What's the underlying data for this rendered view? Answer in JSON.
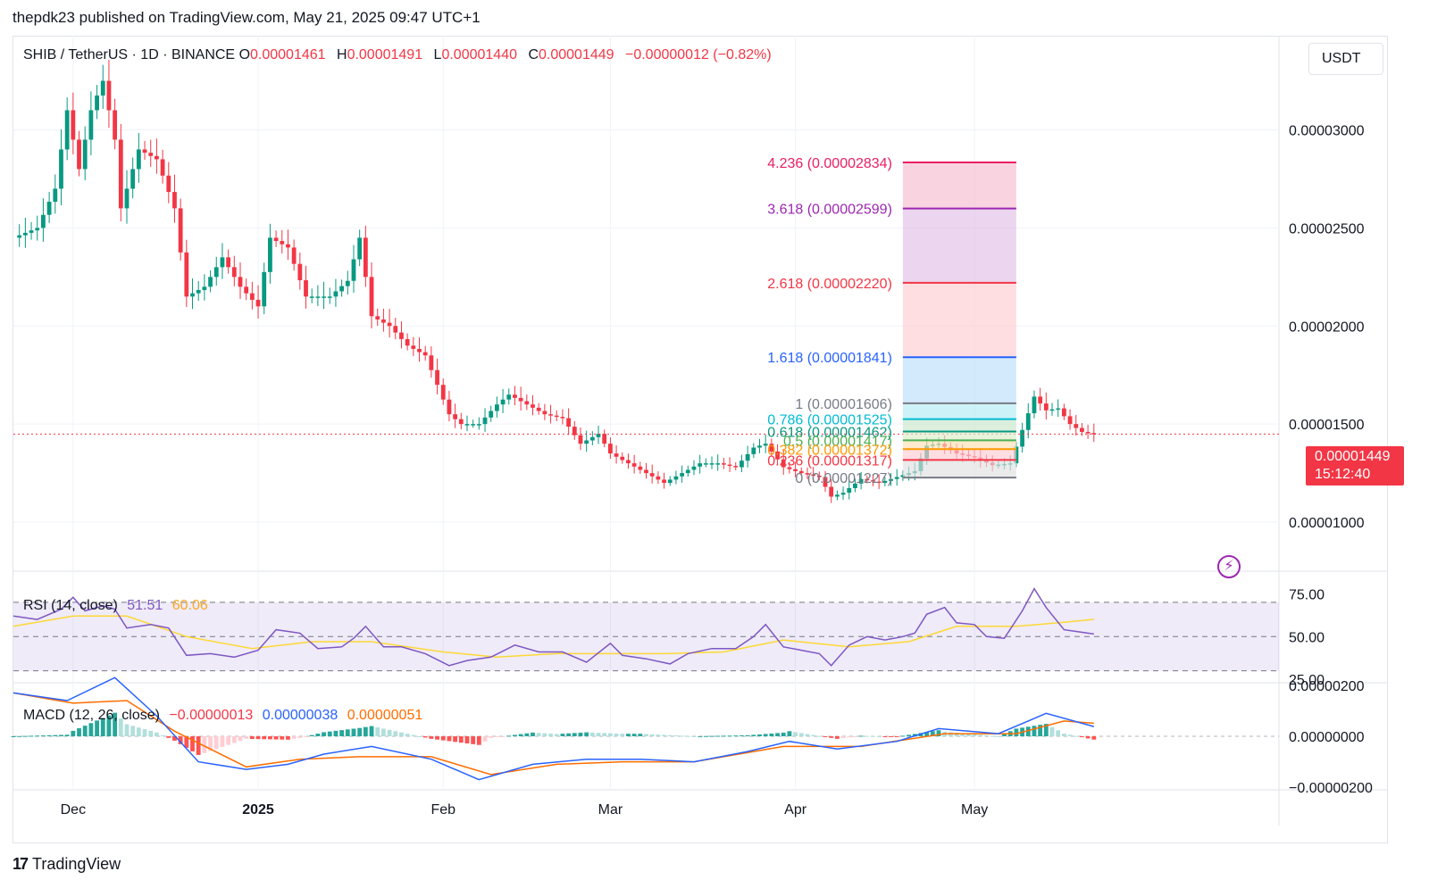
{
  "header": {
    "text": "thepdk23 published on TradingView.com, May 21, 2025 09:47 UTC+1"
  },
  "footer": {
    "brand": "TradingView",
    "logo_glyph": "17"
  },
  "legend": {
    "symbol": "SHIB / TetherUS · 1D · BINANCE",
    "o_label": "O",
    "o_value": "0.00001461",
    "h_label": "H",
    "h_value": "0.00001491",
    "l_label": "L",
    "l_value": "0.00001440",
    "c_label": "C",
    "c_value": "0.00001449",
    "change": "−0.00000012 (−0.82%)"
  },
  "currency_button": "USDT",
  "last_price": {
    "price": "0.00001449",
    "countdown": "15:12:40"
  },
  "colors": {
    "up": "#089981",
    "down": "#f23645",
    "rsi": "#7e57c2",
    "rsi_ma": "#fdd835",
    "macd": "#2962ff",
    "signal": "#ff6d00",
    "grid": "#f0f3fa"
  },
  "chart_data": [
    {
      "type": "candlestick",
      "name": "price",
      "y_ticks": [
        "0.00003000",
        "0.00002500",
        "0.00002000",
        "0.00001500",
        "0.00001000"
      ],
      "y_tick_values": [
        3e-05,
        2.5e-05,
        2e-05,
        1.5e-05,
        1e-05
      ],
      "ylim": [
        7.5e-06,
        3.48e-05
      ],
      "x_ticks": [
        "Dec",
        "2025",
        "Feb",
        "Mar",
        "Apr",
        "May"
      ],
      "x_tick_dates": [
        "2024-12-01",
        "2025-01-01",
        "2025-02-01",
        "2025-03-01",
        "2025-04-01",
        "2025-05-01"
      ],
      "xlim": [
        "2024-11-21",
        "2025-06-21"
      ],
      "last_close": 1.449e-05,
      "close_path": [
        {
          "date": "2024-11-21",
          "close": 2.45e-05
        },
        {
          "date": "2024-11-25",
          "close": 2.5e-05
        },
        {
          "date": "2024-11-28",
          "close": 2.7e-05
        },
        {
          "date": "2024-11-30",
          "close": 3.1e-05
        },
        {
          "date": "2024-12-02",
          "close": 2.8e-05
        },
        {
          "date": "2024-12-04",
          "close": 3.1e-05
        },
        {
          "date": "2024-12-06",
          "close": 3.25e-05
        },
        {
          "date": "2024-12-08",
          "close": 2.95e-05
        },
        {
          "date": "2024-12-09",
          "close": 2.6e-05
        },
        {
          "date": "2024-12-12",
          "close": 2.9e-05
        },
        {
          "date": "2024-12-15",
          "close": 2.85e-05
        },
        {
          "date": "2024-12-18",
          "close": 2.6e-05
        },
        {
          "date": "2024-12-20",
          "close": 2.15e-05
        },
        {
          "date": "2024-12-23",
          "close": 2.2e-05
        },
        {
          "date": "2024-12-26",
          "close": 2.35e-05
        },
        {
          "date": "2024-12-29",
          "close": 2.2e-05
        },
        {
          "date": "2025-01-01",
          "close": 2.1e-05
        },
        {
          "date": "2025-01-03",
          "close": 2.45e-05
        },
        {
          "date": "2025-01-06",
          "close": 2.4e-05
        },
        {
          "date": "2025-01-09",
          "close": 2.15e-05
        },
        {
          "date": "2025-01-13",
          "close": 2.15e-05
        },
        {
          "date": "2025-01-16",
          "close": 2.23e-05
        },
        {
          "date": "2025-01-18",
          "close": 2.45e-05
        },
        {
          "date": "2025-01-20",
          "close": 2.05e-05
        },
        {
          "date": "2025-01-23",
          "close": 2e-05
        },
        {
          "date": "2025-01-26",
          "close": 1.9e-05
        },
        {
          "date": "2025-01-29",
          "close": 1.85e-05
        },
        {
          "date": "2025-02-02",
          "close": 1.55e-05
        },
        {
          "date": "2025-02-04",
          "close": 1.5e-05
        },
        {
          "date": "2025-02-07",
          "close": 1.5e-05
        },
        {
          "date": "2025-02-10",
          "close": 1.6e-05
        },
        {
          "date": "2025-02-12",
          "close": 1.65e-05
        },
        {
          "date": "2025-02-15",
          "close": 1.6e-05
        },
        {
          "date": "2025-02-18",
          "close": 1.55e-05
        },
        {
          "date": "2025-02-21",
          "close": 1.53e-05
        },
        {
          "date": "2025-02-24",
          "close": 1.4e-05
        },
        {
          "date": "2025-02-27",
          "close": 1.45e-05
        },
        {
          "date": "2025-03-01",
          "close": 1.35e-05
        },
        {
          "date": "2025-03-04",
          "close": 1.3e-05
        },
        {
          "date": "2025-03-07",
          "close": 1.25e-05
        },
        {
          "date": "2025-03-10",
          "close": 1.2e-05
        },
        {
          "date": "2025-03-13",
          "close": 1.25e-05
        },
        {
          "date": "2025-03-16",
          "close": 1.3e-05
        },
        {
          "date": "2025-03-19",
          "close": 1.3e-05
        },
        {
          "date": "2025-03-22",
          "close": 1.28e-05
        },
        {
          "date": "2025-03-25",
          "close": 1.38e-05
        },
        {
          "date": "2025-03-27",
          "close": 1.4e-05
        },
        {
          "date": "2025-03-30",
          "close": 1.28e-05
        },
        {
          "date": "2025-04-02",
          "close": 1.25e-05
        },
        {
          "date": "2025-04-05",
          "close": 1.23e-05
        },
        {
          "date": "2025-04-07",
          "close": 1.13e-05
        },
        {
          "date": "2025-04-09",
          "close": 1.15e-05
        },
        {
          "date": "2025-04-12",
          "close": 1.22e-05
        },
        {
          "date": "2025-04-15",
          "close": 1.2e-05
        },
        {
          "date": "2025-04-18",
          "close": 1.23e-05
        },
        {
          "date": "2025-04-21",
          "close": 1.26e-05
        },
        {
          "date": "2025-04-23",
          "close": 1.39e-05
        },
        {
          "date": "2025-04-25",
          "close": 1.4e-05
        },
        {
          "date": "2025-04-28",
          "close": 1.35e-05
        },
        {
          "date": "2025-05-01",
          "close": 1.33e-05
        },
        {
          "date": "2025-05-04",
          "close": 1.29e-05
        },
        {
          "date": "2025-05-07",
          "close": 1.3e-05
        },
        {
          "date": "2025-05-09",
          "close": 1.47e-05
        },
        {
          "date": "2025-05-11",
          "close": 1.64e-05
        },
        {
          "date": "2025-05-13",
          "close": 1.57e-05
        },
        {
          "date": "2025-05-15",
          "close": 1.58e-05
        },
        {
          "date": "2025-05-17",
          "close": 1.5e-05
        },
        {
          "date": "2025-05-19",
          "close": 1.46e-05
        },
        {
          "date": "2025-05-21",
          "close": 1.449e-05
        }
      ],
      "fib_extension": {
        "date_start": "2025-04-19",
        "date_end": "2025-05-08",
        "levels": [
          {
            "ratio": "4.236",
            "price": 2.834e-05,
            "label": "4.236 (0.00002834)",
            "color": "#e91e63"
          },
          {
            "ratio": "3.618",
            "price": 2.599e-05,
            "label": "3.618 (0.00002599)",
            "color": "#9c27b0"
          },
          {
            "ratio": "2.618",
            "price": 2.22e-05,
            "label": "2.618 (0.00002220)",
            "color": "#f23645"
          },
          {
            "ratio": "1.618",
            "price": 1.841e-05,
            "label": "1.618 (0.00001841)",
            "color": "#2962ff"
          },
          {
            "ratio": "1",
            "price": 1.606e-05,
            "label": "1 (0.00001606)",
            "color": "#787b86"
          },
          {
            "ratio": "0.786",
            "price": 1.525e-05,
            "label": "0.786 (0.00001525)",
            "color": "#00bcd4"
          },
          {
            "ratio": "0.618",
            "price": 1.462e-05,
            "label": "0.618 (0.00001462)",
            "color": "#089981"
          },
          {
            "ratio": "0.5",
            "price": 1.417e-05,
            "label": "0.5 (0.00001417)",
            "color": "#4caf50"
          },
          {
            "ratio": "0.382",
            "price": 1.372e-05,
            "label": "0.382 (0.00001372)",
            "color": "#ff9800"
          },
          {
            "ratio": "0.236",
            "price": 1.317e-05,
            "label": "0.236 (0.00001317)",
            "color": "#f23645"
          },
          {
            "ratio": "0",
            "price": 1.227e-05,
            "label": "0 (0.00001227)",
            "color": "#787b86"
          }
        ]
      }
    },
    {
      "type": "line",
      "name": "RSI",
      "label": "RSI (14, close)",
      "value_rsi": "51.51",
      "value_ma": "60.06",
      "y_ticks": [
        "75.00",
        "50.00",
        "25.00"
      ],
      "y_tick_values": [
        75,
        50,
        25
      ],
      "ylim": [
        23,
        83
      ],
      "band": [
        30,
        70
      ],
      "rsi_path": [
        {
          "date": "2024-11-21",
          "value": 62
        },
        {
          "date": "2024-11-25",
          "value": 60
        },
        {
          "date": "2024-11-29",
          "value": 66
        },
        {
          "date": "2024-12-01",
          "value": 73
        },
        {
          "date": "2024-12-03",
          "value": 65
        },
        {
          "date": "2024-12-06",
          "value": 68
        },
        {
          "date": "2024-12-08",
          "value": 66
        },
        {
          "date": "2024-12-10",
          "value": 55
        },
        {
          "date": "2024-12-14",
          "value": 57
        },
        {
          "date": "2024-12-17",
          "value": 55
        },
        {
          "date": "2024-12-20",
          "value": 39
        },
        {
          "date": "2024-12-24",
          "value": 40
        },
        {
          "date": "2024-12-28",
          "value": 38
        },
        {
          "date": "2025-01-01",
          "value": 42
        },
        {
          "date": "2025-01-04",
          "value": 54
        },
        {
          "date": "2025-01-08",
          "value": 52
        },
        {
          "date": "2025-01-11",
          "value": 43
        },
        {
          "date": "2025-01-15",
          "value": 44
        },
        {
          "date": "2025-01-17",
          "value": 49
        },
        {
          "date": "2025-01-19",
          "value": 56
        },
        {
          "date": "2025-01-22",
          "value": 44
        },
        {
          "date": "2025-01-25",
          "value": 44
        },
        {
          "date": "2025-01-29",
          "value": 40
        },
        {
          "date": "2025-02-02",
          "value": 33
        },
        {
          "date": "2025-02-05",
          "value": 36
        },
        {
          "date": "2025-02-09",
          "value": 38
        },
        {
          "date": "2025-02-13",
          "value": 45
        },
        {
          "date": "2025-02-17",
          "value": 41
        },
        {
          "date": "2025-02-21",
          "value": 41
        },
        {
          "date": "2025-02-25",
          "value": 35
        },
        {
          "date": "2025-03-01",
          "value": 46
        },
        {
          "date": "2025-03-03",
          "value": 39
        },
        {
          "date": "2025-03-07",
          "value": 37
        },
        {
          "date": "2025-03-11",
          "value": 34
        },
        {
          "date": "2025-03-14",
          "value": 40
        },
        {
          "date": "2025-03-18",
          "value": 43
        },
        {
          "date": "2025-03-22",
          "value": 43
        },
        {
          "date": "2025-03-25",
          "value": 50
        },
        {
          "date": "2025-03-27",
          "value": 57
        },
        {
          "date": "2025-03-30",
          "value": 44
        },
        {
          "date": "2025-04-02",
          "value": 42
        },
        {
          "date": "2025-04-05",
          "value": 40
        },
        {
          "date": "2025-04-07",
          "value": 33
        },
        {
          "date": "2025-04-10",
          "value": 45
        },
        {
          "date": "2025-04-13",
          "value": 50
        },
        {
          "date": "2025-04-16",
          "value": 48
        },
        {
          "date": "2025-04-19",
          "value": 50
        },
        {
          "date": "2025-04-21",
          "value": 52
        },
        {
          "date": "2025-04-23",
          "value": 63
        },
        {
          "date": "2025-04-26",
          "value": 67
        },
        {
          "date": "2025-04-28",
          "value": 58
        },
        {
          "date": "2025-05-01",
          "value": 57
        },
        {
          "date": "2025-05-03",
          "value": 50
        },
        {
          "date": "2025-05-06",
          "value": 49
        },
        {
          "date": "2025-05-09",
          "value": 65
        },
        {
          "date": "2025-05-11",
          "value": 78
        },
        {
          "date": "2025-05-13",
          "value": 67
        },
        {
          "date": "2025-05-16",
          "value": 54
        },
        {
          "date": "2025-05-18",
          "value": 53
        },
        {
          "date": "2025-05-21",
          "value": 51.51
        }
      ],
      "ma_path": [
        {
          "date": "2024-11-21",
          "value": 56
        },
        {
          "date": "2024-12-01",
          "value": 62
        },
        {
          "date": "2024-12-10",
          "value": 62
        },
        {
          "date": "2024-12-20",
          "value": 50
        },
        {
          "date": "2024-12-31",
          "value": 43
        },
        {
          "date": "2025-01-10",
          "value": 47
        },
        {
          "date": "2025-01-20",
          "value": 47
        },
        {
          "date": "2025-02-01",
          "value": 41
        },
        {
          "date": "2025-02-10",
          "value": 38
        },
        {
          "date": "2025-02-20",
          "value": 40
        },
        {
          "date": "2025-03-01",
          "value": 40
        },
        {
          "date": "2025-03-10",
          "value": 40
        },
        {
          "date": "2025-03-20",
          "value": 41
        },
        {
          "date": "2025-03-30",
          "value": 48
        },
        {
          "date": "2025-04-10",
          "value": 44
        },
        {
          "date": "2025-04-20",
          "value": 47
        },
        {
          "date": "2025-04-28",
          "value": 56
        },
        {
          "date": "2025-05-08",
          "value": 56
        },
        {
          "date": "2025-05-15",
          "value": 58
        },
        {
          "date": "2025-05-21",
          "value": 60.06
        }
      ]
    },
    {
      "type": "line",
      "name": "MACD",
      "label": "MACD (12, 26, close)",
      "value_hist": "−0.00000013",
      "value_macd": "0.00000038",
      "value_signal": "0.00000051",
      "y_ticks": [
        "0.00000200",
        "0.00000000",
        "−0.00000200"
      ],
      "y_tick_values": [
        2e-06,
        0,
        -2e-06
      ],
      "ylim": [
        -2.1e-06,
        2.1e-06
      ],
      "macd_path": [
        {
          "date": "2024-11-21",
          "value": 1.7e-06
        },
        {
          "date": "2024-11-30",
          "value": 1.4e-06
        },
        {
          "date": "2024-12-08",
          "value": 2.3e-06
        },
        {
          "date": "2024-12-15",
          "value": 8e-07
        },
        {
          "date": "2024-12-22",
          "value": -1e-06
        },
        {
          "date": "2024-12-30",
          "value": -1.3e-06
        },
        {
          "date": "2025-01-06",
          "value": -1.1e-06
        },
        {
          "date": "2025-01-12",
          "value": -7e-07
        },
        {
          "date": "2025-01-20",
          "value": -4e-07
        },
        {
          "date": "2025-01-30",
          "value": -9e-07
        },
        {
          "date": "2025-02-07",
          "value": -1.7e-06
        },
        {
          "date": "2025-02-16",
          "value": -1.1e-06
        },
        {
          "date": "2025-02-25",
          "value": -9e-07
        },
        {
          "date": "2025-03-06",
          "value": -9e-07
        },
        {
          "date": "2025-03-15",
          "value": -1e-06
        },
        {
          "date": "2025-03-24",
          "value": -6e-07
        },
        {
          "date": "2025-03-31",
          "value": -2e-07
        },
        {
          "date": "2025-04-08",
          "value": -5e-07
        },
        {
          "date": "2025-04-18",
          "value": -2e-07
        },
        {
          "date": "2025-04-25",
          "value": 3e-07
        },
        {
          "date": "2025-05-05",
          "value": 1e-07
        },
        {
          "date": "2025-05-13",
          "value": 9e-07
        },
        {
          "date": "2025-05-21",
          "value": 3.8e-07
        }
      ],
      "signal_path": [
        {
          "date": "2024-11-21",
          "value": 1.7e-06
        },
        {
          "date": "2024-12-01",
          "value": 1.3e-06
        },
        {
          "date": "2024-12-10",
          "value": 1.4e-06
        },
        {
          "date": "2024-12-18",
          "value": 2e-07
        },
        {
          "date": "2024-12-30",
          "value": -1.2e-06
        },
        {
          "date": "2025-01-08",
          "value": -9e-07
        },
        {
          "date": "2025-01-18",
          "value": -8e-07
        },
        {
          "date": "2025-01-30",
          "value": -8e-07
        },
        {
          "date": "2025-02-09",
          "value": -1.5e-06
        },
        {
          "date": "2025-02-20",
          "value": -1.1e-06
        },
        {
          "date": "2025-03-03",
          "value": -1e-06
        },
        {
          "date": "2025-03-15",
          "value": -1e-06
        },
        {
          "date": "2025-03-30",
          "value": -4e-07
        },
        {
          "date": "2025-04-12",
          "value": -4e-07
        },
        {
          "date": "2025-04-26",
          "value": 1e-07
        },
        {
          "date": "2025-05-08",
          "value": 1e-07
        },
        {
          "date": "2025-05-16",
          "value": 6e-07
        },
        {
          "date": "2025-05-21",
          "value": 5.1e-07
        }
      ]
    }
  ]
}
